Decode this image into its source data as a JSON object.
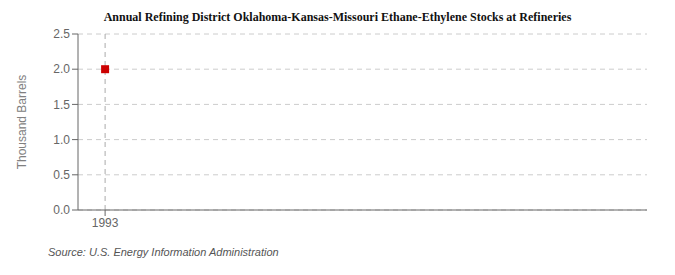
{
  "chart_data": {
    "type": "scatter",
    "title": "Annual Refining District Oklahoma-Kansas-Missouri Ethane-Ethylene Stocks at Refineries",
    "y_label": "Thousand Barrels",
    "source": "Source: U.S. Energy Information Administration",
    "x": [
      1993
    ],
    "values": [
      2.0
    ],
    "color": "#cc0000",
    "marker": "square",
    "xlim": [
      1992.4,
      2005
    ],
    "ylim": [
      0.0,
      2.5
    ],
    "xticks": [
      1993
    ],
    "yticks": [
      {
        "value": 0,
        "label": "0.0"
      },
      0.5,
      {
        "value": 1,
        "label": "1.0"
      },
      1.5,
      {
        "value": 2,
        "label": "2.0"
      },
      2.5
    ],
    "grid": "y",
    "x_reference_lines": [
      1993
    ]
  }
}
